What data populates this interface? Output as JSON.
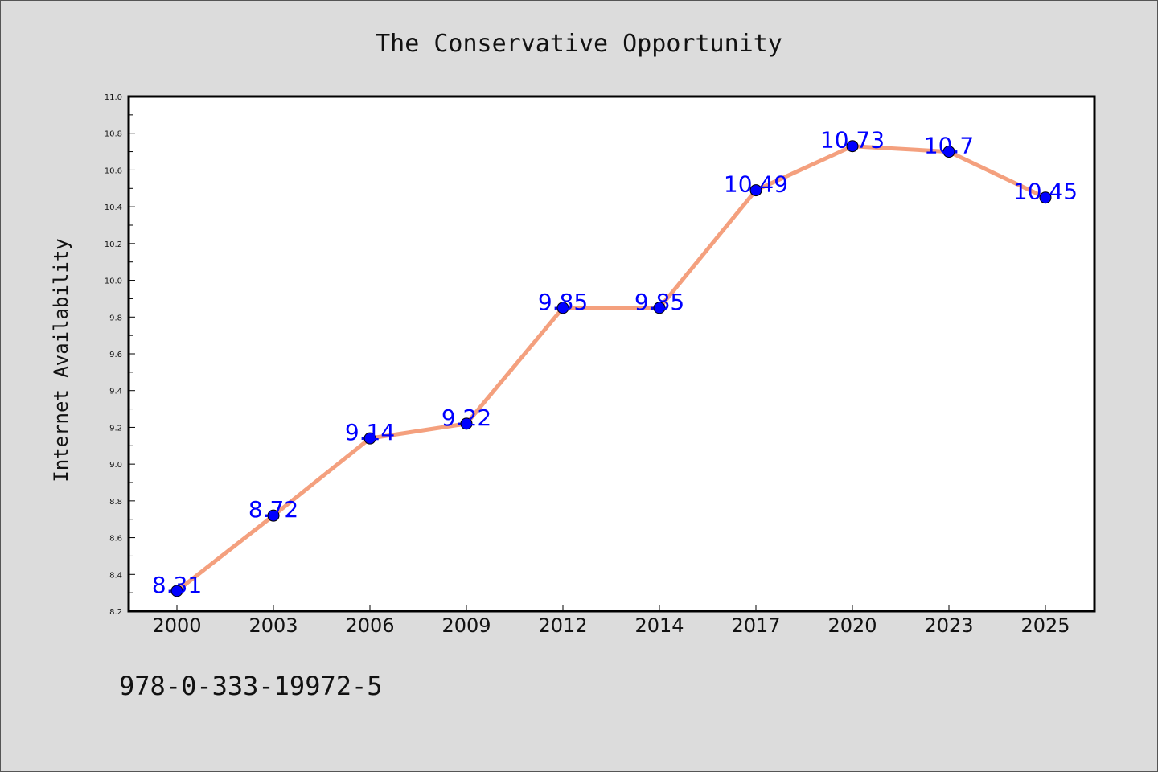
{
  "chart_data": {
    "type": "line",
    "title": "The Conservative Opportunity",
    "ylabel": "Internet Availability",
    "xlabel": "",
    "categories": [
      "2000",
      "2003",
      "2006",
      "2009",
      "2012",
      "2014",
      "2017",
      "2020",
      "2023",
      "2025"
    ],
    "series": [
      {
        "values": [
          8.31,
          8.72,
          9.14,
          9.22,
          9.85,
          9.85,
          10.49,
          10.73,
          10.7,
          10.45
        ],
        "data_labels": [
          "8.31",
          "8.72",
          "9.14",
          "9.22",
          "9.85",
          "9.85",
          "10.49",
          "10.73",
          "10.7",
          "10.45"
        ]
      }
    ],
    "ylim": [
      8.2,
      11.0
    ],
    "yticks": [
      "8.2",
      "8.4",
      "8.6",
      "8.8",
      "9.0",
      "9.2",
      "9.4",
      "9.6",
      "9.8",
      "10.0",
      "10.2",
      "10.4",
      "10.6",
      "10.8",
      "11.0"
    ],
    "grid": false,
    "legend": "none",
    "colors": {
      "line": "#f4a07e",
      "marker": "#0000ff",
      "label": "#0000ff",
      "background": "#dcdcdc",
      "plot_background": "#ffffff"
    }
  },
  "footer": {
    "identifier": "978-0-333-19972-5"
  }
}
